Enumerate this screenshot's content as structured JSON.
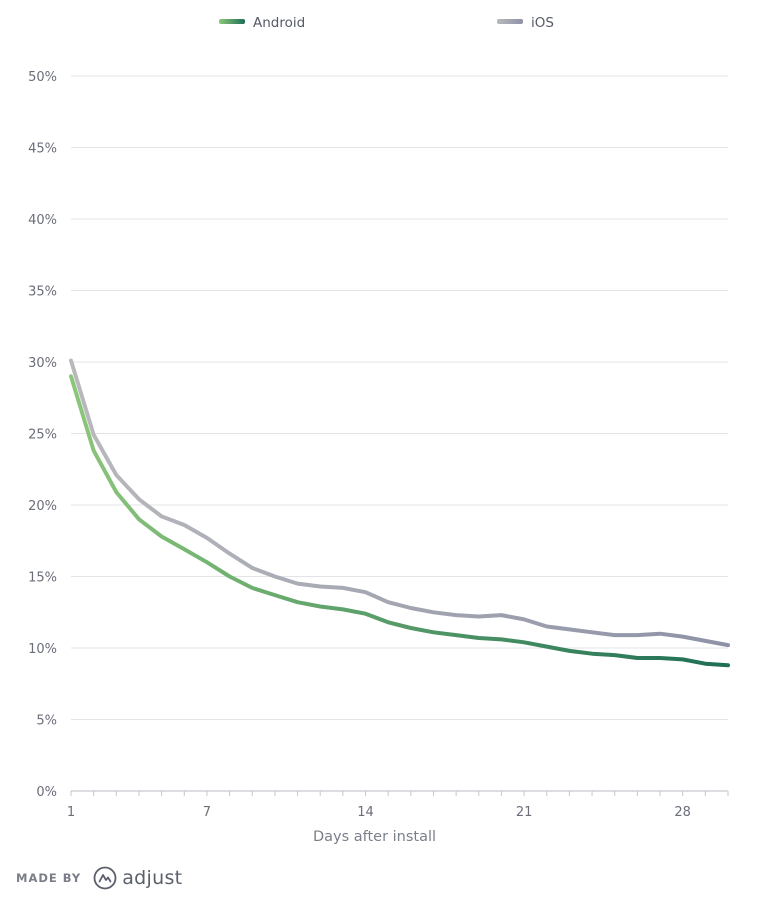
{
  "chart_data": {
    "type": "line",
    "xlabel": "Days after install",
    "ylabel": "",
    "x": [
      1,
      2,
      3,
      4,
      5,
      6,
      7,
      8,
      9,
      10,
      11,
      12,
      13,
      14,
      15,
      16,
      17,
      18,
      19,
      20,
      21,
      22,
      23,
      24,
      25,
      26,
      27,
      28,
      29,
      30
    ],
    "ylim": [
      0,
      50
    ],
    "xlim": [
      1,
      30
    ],
    "yticks": [
      "0%",
      "5%",
      "10%",
      "15%",
      "20%",
      "25%",
      "30%",
      "35%",
      "40%",
      "45%",
      "50%"
    ],
    "xticks": [
      "1",
      "7",
      "14",
      "21",
      "28"
    ],
    "grid": true,
    "legend_position": "top",
    "series": [
      {
        "name": "Android",
        "colors": [
          "#8cc67a",
          "#1f6e55"
        ],
        "values": [
          29.0,
          23.8,
          20.9,
          19.0,
          17.8,
          16.9,
          16.0,
          15.0,
          14.2,
          13.7,
          13.2,
          12.9,
          12.7,
          12.4,
          11.8,
          11.4,
          11.1,
          10.9,
          10.7,
          10.6,
          10.4,
          10.1,
          9.8,
          9.6,
          9.5,
          9.3,
          9.3,
          9.2,
          8.9,
          8.8
        ]
      },
      {
        "name": "iOS",
        "colors": [
          "#b8b9bd",
          "#8e92a6"
        ],
        "values": [
          30.1,
          24.9,
          22.1,
          20.4,
          19.2,
          18.6,
          17.7,
          16.6,
          15.6,
          15.0,
          14.5,
          14.3,
          14.2,
          13.9,
          13.2,
          12.8,
          12.5,
          12.3,
          12.2,
          12.3,
          12.0,
          11.5,
          11.3,
          11.1,
          10.9,
          10.9,
          11.0,
          10.8,
          10.5,
          10.2
        ]
      }
    ]
  },
  "footer": {
    "made_by": "MADE BY",
    "brand": "adjust",
    "brand_icon": "adjust-logo-icon"
  }
}
